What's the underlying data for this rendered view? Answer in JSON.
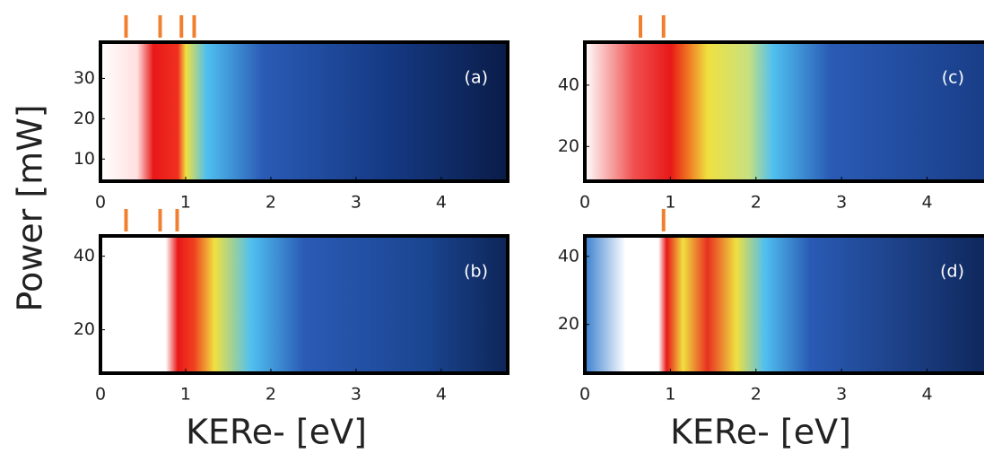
{
  "chart_data": [
    {
      "type": "heatmap",
      "panel": "(a)",
      "ylabel": "Power [mW]",
      "xlim": [
        0,
        4.78
      ],
      "xticks": [
        0,
        1,
        2,
        3,
        4
      ],
      "ylim": [
        4.5,
        39
      ],
      "yticks": [
        10,
        20,
        30
      ],
      "markers": [
        0.3,
        0.7,
        0.95,
        1.1
      ],
      "marker_color": "#f08030"
    },
    {
      "type": "heatmap",
      "panel": "(b)",
      "xlabel": "KERe- [eV]",
      "xlim": [
        0,
        4.78
      ],
      "xticks": [
        0,
        1,
        2,
        3,
        4
      ],
      "ylim": [
        8.2,
        45.5
      ],
      "yticks": [
        20,
        40
      ],
      "markers": [
        0.3,
        0.7,
        0.9
      ],
      "marker_color": "#f08030"
    },
    {
      "type": "heatmap",
      "panel": "(c)",
      "xlim": [
        0,
        4.78
      ],
      "xticks": [
        0,
        1,
        2,
        3,
        4
      ],
      "ylim": [
        8.7,
        54
      ],
      "yticks": [
        20,
        40
      ],
      "markers": [
        0.65,
        0.92
      ],
      "marker_color": "#f08030"
    },
    {
      "type": "heatmap",
      "panel": "(d)",
      "xlabel": "KERe- [eV]",
      "xlim": [
        0,
        4.78
      ],
      "xticks": [
        0,
        1,
        2,
        3,
        4
      ],
      "ylim": [
        5.7,
        46
      ],
      "yticks": [
        20,
        40
      ],
      "markers": [
        0.92
      ],
      "marker_color": "#f08030"
    }
  ]
}
